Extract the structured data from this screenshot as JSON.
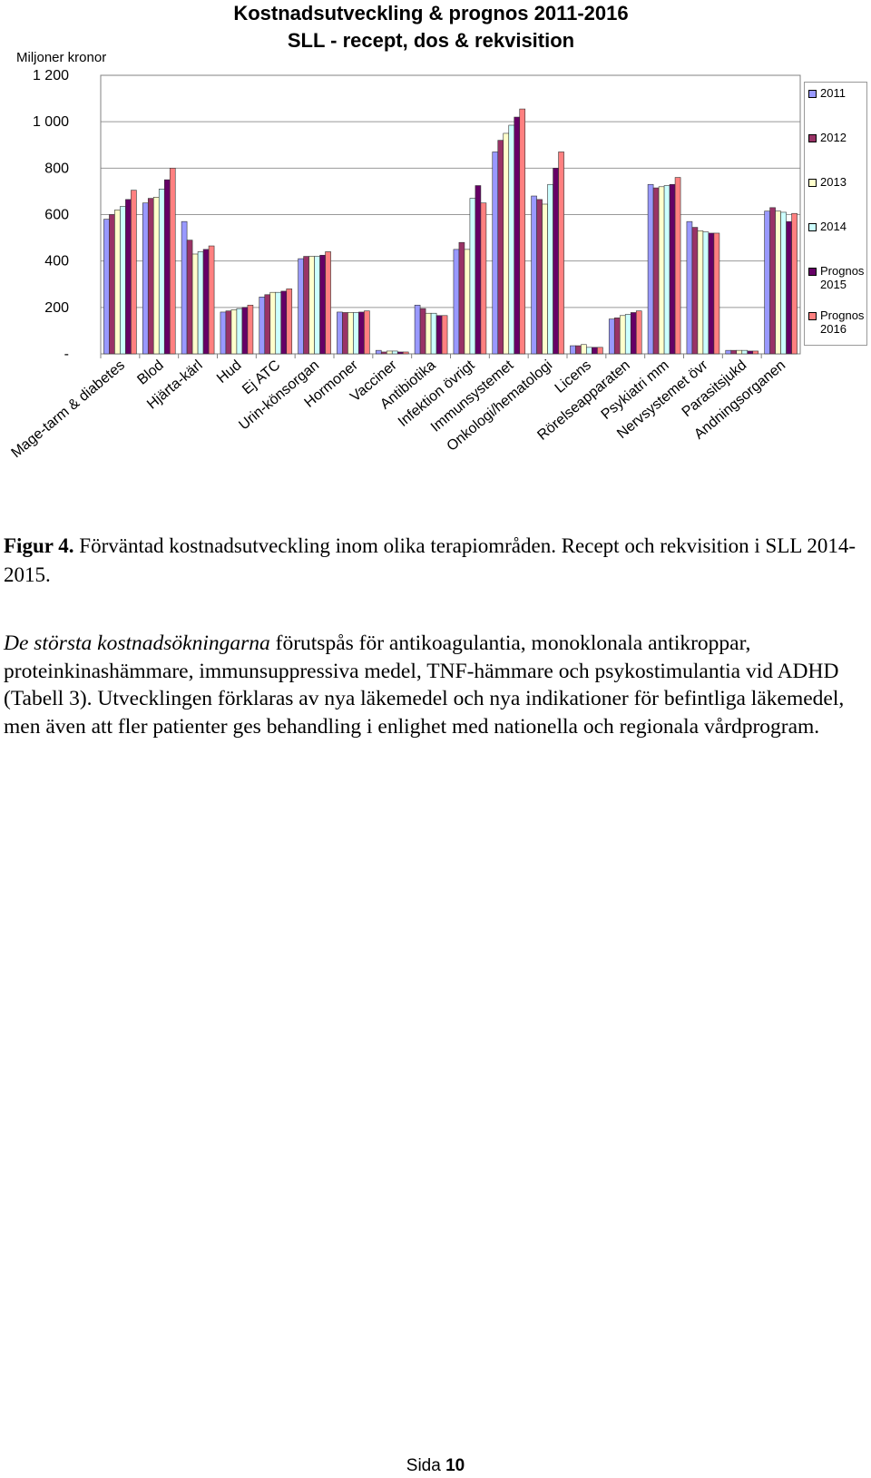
{
  "chart_data": {
    "type": "bar",
    "title": [
      "Kostnadsutveckling & prognos 2011-2016",
      "SLL - recept, dos & rekvisition"
    ],
    "y_label": "Miljoner kronor",
    "categories": [
      "Mage-tarm & diabetes",
      "Blod",
      "Hjärta-kärl",
      "Hud",
      "Ej ATC",
      "Urin-könsorgan",
      "Hormoner",
      "Vacciner",
      "Antibiotika",
      "Infektion övrigt",
      "Immunsystemet",
      "Onkologi/hematologi",
      "Licens",
      "Rörelseapparaten",
      "Psykiatri mm",
      "Nervsystemet övr",
      "Parasitsjukd",
      "Andningsorganen"
    ],
    "series": [
      {
        "name": "2011",
        "color": "#9999ff",
        "values": [
          580,
          650,
          570,
          180,
          245,
          410,
          180,
          15,
          210,
          450,
          870,
          680,
          35,
          150,
          730,
          570,
          15,
          615
        ]
      },
      {
        "name": "2012",
        "color": "#993366",
        "values": [
          600,
          670,
          490,
          185,
          255,
          420,
          178,
          8,
          195,
          480,
          920,
          665,
          35,
          155,
          715,
          545,
          15,
          630
        ]
      },
      {
        "name": "2013",
        "color": "#ffffcc",
        "values": [
          620,
          675,
          430,
          190,
          265,
          420,
          178,
          12,
          175,
          450,
          950,
          645,
          40,
          165,
          720,
          530,
          15,
          615
        ]
      },
      {
        "name": "2014",
        "color": "#ccffff",
        "values": [
          635,
          710,
          440,
          195,
          265,
          420,
          178,
          12,
          175,
          670,
          985,
          730,
          28,
          170,
          725,
          525,
          15,
          610
        ]
      },
      {
        "name": "Prognos 2015",
        "color": "#660066",
        "values": [
          665,
          750,
          450,
          200,
          270,
          425,
          180,
          8,
          165,
          725,
          1020,
          800,
          28,
          178,
          730,
          520,
          12,
          570
        ]
      },
      {
        "name": "Prognos 2016",
        "color": "#ff8080",
        "values": [
          705,
          800,
          465,
          210,
          280,
          440,
          185,
          8,
          165,
          650,
          1055,
          870,
          28,
          185,
          760,
          520,
          12,
          605
        ]
      }
    ],
    "ylim": [
      0,
      1200
    ],
    "yticks": [
      {
        "value": 0,
        "label": "-"
      },
      200,
      400,
      600,
      800,
      {
        "value": 1000,
        "label": "1 000"
      },
      {
        "value": 1200,
        "label": "1 200"
      }
    ],
    "grid": true
  },
  "caption": {
    "label": "Figur 4.",
    "text": "Förväntad kostnadsutveckling inom olika terapiområden. Recept och rekvisition i SLL 2014-2015."
  },
  "paragraph": {
    "emphasis": "De största kostnadsökningarna",
    "text": "förutspås för antikoagulantia, monoklonala antikroppar, proteinkinashämmare, immunsuppressiva medel, TNF-hämmare och psykostimulantia vid ADHD (Tabell 3). Utvecklingen förklaras av nya läkemedel och nya indikationer för befintliga läkemedel, men även att fler patienter ges behandling i enlighet med nationella och regionala vårdprogram."
  },
  "footer": {
    "label": "Sida",
    "number": "10"
  }
}
